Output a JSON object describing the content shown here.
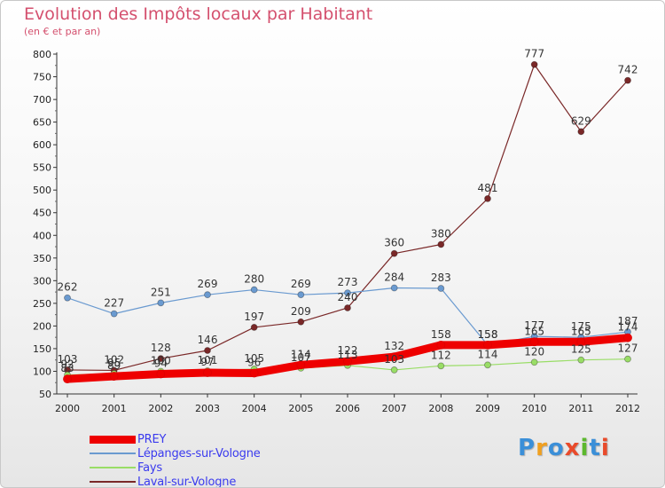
{
  "title": "Evolution des Impôts locaux par Habitant",
  "subtitle": "(en € et par an)",
  "logo": {
    "letters": [
      "P",
      "r",
      "o",
      "x",
      "i",
      "t",
      "i"
    ],
    "colors": [
      "#3b8fd8",
      "#f0a020",
      "#3b8fd8",
      "#e94a2a",
      "#5cb82e",
      "#3b8fd8",
      "#e94a2a"
    ]
  },
  "chart_data": {
    "type": "line",
    "x": [
      "2000",
      "2001",
      "2002",
      "2003",
      "2004",
      "2005",
      "2006",
      "2007",
      "2008",
      "2009",
      "2010",
      "2011",
      "2012"
    ],
    "ylim": [
      50,
      800
    ],
    "yticks": [
      "50",
      "100",
      "150",
      "200",
      "250",
      "300",
      "350",
      "400",
      "450",
      "500",
      "550",
      "600",
      "650",
      "700",
      "750",
      "800"
    ],
    "grid": false,
    "legend_position": "bottom-left",
    "series": [
      {
        "name": "PREY",
        "color": "#ee0000",
        "values": [
          83,
          89,
          94,
          97,
          96,
          114,
          122,
          132,
          158,
          158,
          165,
          165,
          174
        ],
        "labels": [
          "83",
          "89",
          "94",
          "97",
          "96",
          "114",
          "122",
          "132",
          "158",
          "158",
          "165",
          "165",
          "174"
        ]
      },
      {
        "name": "Lépanges-sur-Vologne",
        "color": "#6a9ad0",
        "values": [
          262,
          227,
          251,
          269,
          280,
          269,
          273,
          284,
          283,
          158,
          177,
          175,
          187
        ],
        "labels": [
          "262",
          "227",
          "251",
          "269",
          "280",
          "269",
          "273",
          "284",
          "283",
          "158",
          "177",
          "175",
          "187"
        ]
      },
      {
        "name": "Fays",
        "color": "#99dd66",
        "values": [
          92,
          95,
          100,
          101,
          105,
          107,
          113,
          103,
          112,
          114,
          120,
          125,
          127
        ],
        "labels": [
          "92",
          "95",
          "100",
          "101",
          "105",
          "107",
          "113",
          "103",
          "112",
          "114",
          "120",
          "125",
          "127"
        ]
      },
      {
        "name": "Laval-sur-Vologne",
        "color": "#7a2828",
        "values": [
          103,
          102,
          128,
          146,
          197,
          209,
          240,
          360,
          380,
          481,
          777,
          629,
          742
        ],
        "labels": [
          "103",
          "102",
          "128",
          "146",
          "197",
          "209",
          "240",
          "360",
          "380",
          "481",
          "777",
          "629",
          "742"
        ]
      }
    ]
  }
}
